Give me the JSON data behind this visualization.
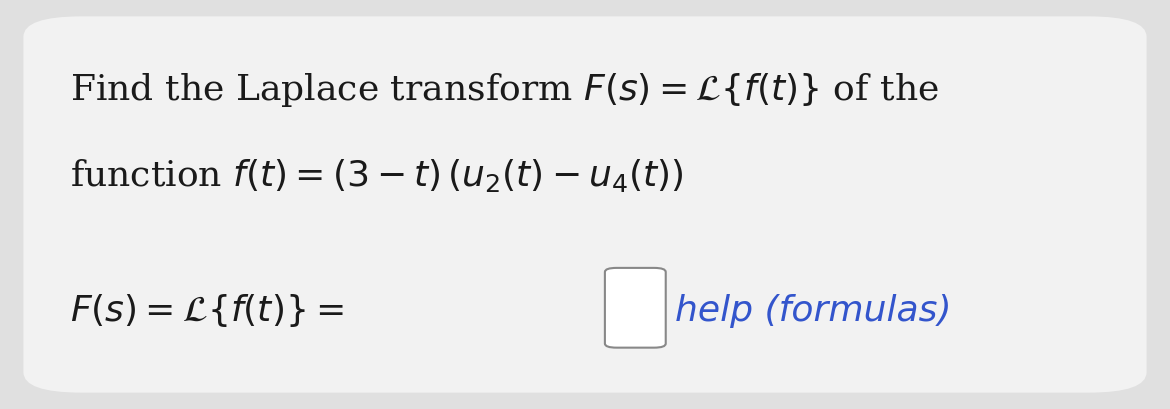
{
  "background_color": "#e0e0e0",
  "card_color": "#f2f2f2",
  "text_color": "#1a1a1a",
  "blue_color": "#3355cc",
  "line1": "Find the Laplace transform $F(s) = \\mathcal{L}\\{f(t)\\}$ of the",
  "line2": "function $f(t) = (3 - t)\\,(u_2(t) - u_4(t))$",
  "line3_left": "$F(s) = \\mathcal{L}\\{f(t)\\} = $",
  "line3_help": "help (formulas)",
  "font_size_main": 26,
  "font_size_answer": 26,
  "fig_width": 11.7,
  "fig_height": 4.09,
  "dpi": 100
}
